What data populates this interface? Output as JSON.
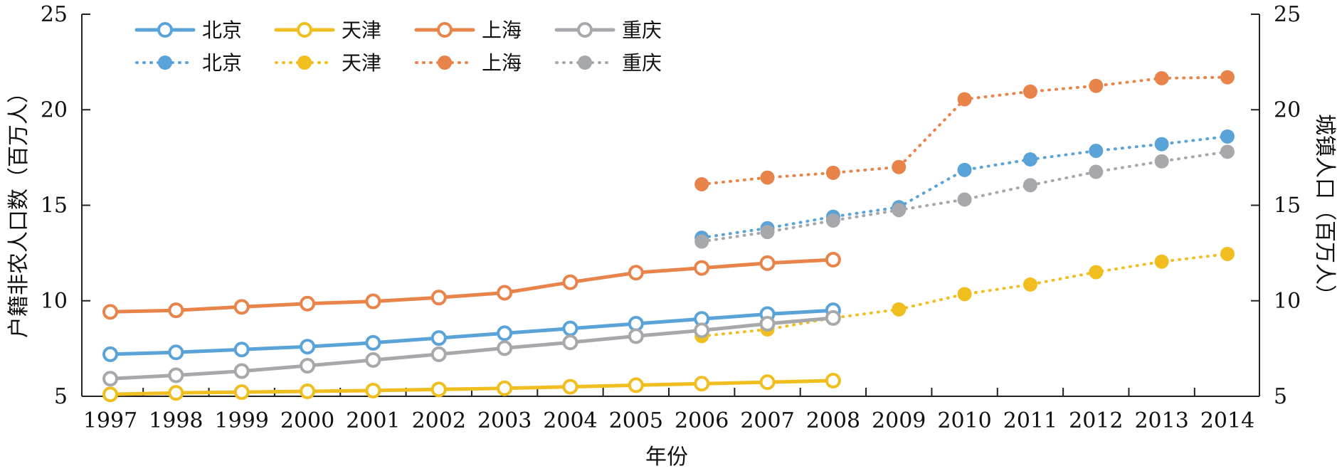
{
  "chart_data": {
    "type": "line",
    "xlabel": "年份",
    "ylabel_left": "户籍非农人口数（百万人）",
    "ylabel_right": "城镇人口（百万人）",
    "ylim_left": [
      5,
      25
    ],
    "ylim_right": [
      5,
      25
    ],
    "y_ticks": [
      5,
      10,
      15,
      20,
      25
    ],
    "x_ticks": [
      1997,
      1998,
      1999,
      2000,
      2001,
      2002,
      2003,
      2004,
      2005,
      2006,
      2007,
      2008,
      2009,
      2010,
      2011,
      2012,
      2013,
      2014
    ],
    "grid": false,
    "legend_position": "top-left",
    "series": [
      {
        "name": "北京",
        "style": "solid",
        "axis": "left",
        "color": "#5aa3d8",
        "x": [
          1997,
          1998,
          1999,
          2000,
          2001,
          2002,
          2003,
          2004,
          2005,
          2006,
          2007,
          2008
        ],
        "values": [
          7.2,
          7.3,
          7.45,
          7.6,
          7.8,
          8.05,
          8.3,
          8.55,
          8.8,
          9.05,
          9.3,
          9.5
        ]
      },
      {
        "name": "天津",
        "style": "solid",
        "axis": "left",
        "color": "#f0be1e",
        "x": [
          1997,
          1998,
          1999,
          2000,
          2001,
          2002,
          2003,
          2004,
          2005,
          2006,
          2007,
          2008
        ],
        "values": [
          5.1,
          5.18,
          5.22,
          5.26,
          5.3,
          5.36,
          5.42,
          5.5,
          5.58,
          5.66,
          5.74,
          5.82
        ]
      },
      {
        "name": "上海",
        "style": "solid",
        "axis": "left",
        "color": "#e8844a",
        "x": [
          1997,
          1998,
          1999,
          2000,
          2001,
          2002,
          2003,
          2004,
          2005,
          2006,
          2007,
          2008
        ],
        "values": [
          9.42,
          9.5,
          9.68,
          9.85,
          9.97,
          10.17,
          10.42,
          10.97,
          11.47,
          11.72,
          11.97,
          12.15
        ]
      },
      {
        "name": "重庆",
        "style": "solid",
        "axis": "left",
        "color": "#a6a8ac",
        "x": [
          1997,
          1998,
          1999,
          2000,
          2001,
          2002,
          2003,
          2004,
          2005,
          2006,
          2007,
          2008
        ],
        "values": [
          5.92,
          6.1,
          6.32,
          6.6,
          6.9,
          7.2,
          7.52,
          7.82,
          8.15,
          8.45,
          8.8,
          9.1
        ]
      },
      {
        "name": "北京",
        "style": "dotted",
        "axis": "right",
        "color": "#5aa3d8",
        "x": [
          2006,
          2007,
          2008,
          2009,
          2010,
          2011,
          2012,
          2013,
          2014
        ],
        "values": [
          13.3,
          13.8,
          14.4,
          14.9,
          16.85,
          17.4,
          17.85,
          18.2,
          18.6
        ]
      },
      {
        "name": "天津",
        "style": "dotted",
        "axis": "right",
        "color": "#f0be1e",
        "x": [
          2006,
          2007,
          2008,
          2009,
          2010,
          2011,
          2012,
          2013,
          2014
        ],
        "values": [
          8.15,
          8.5,
          9.1,
          9.55,
          10.35,
          10.85,
          11.5,
          12.05,
          12.45
        ]
      },
      {
        "name": "上海",
        "style": "dotted",
        "axis": "right",
        "color": "#e8844a",
        "x": [
          2006,
          2007,
          2008,
          2009,
          2010,
          2011,
          2012,
          2013,
          2014
        ],
        "values": [
          16.1,
          16.45,
          16.7,
          17.0,
          20.55,
          20.95,
          21.25,
          21.65,
          21.7
        ]
      },
      {
        "name": "重庆",
        "style": "dotted",
        "axis": "right",
        "color": "#a6a8ac",
        "x": [
          2006,
          2007,
          2008,
          2009,
          2010,
          2011,
          2012,
          2013,
          2014
        ],
        "values": [
          13.1,
          13.6,
          14.2,
          14.75,
          15.3,
          16.05,
          16.75,
          17.3,
          17.8
        ]
      }
    ]
  }
}
